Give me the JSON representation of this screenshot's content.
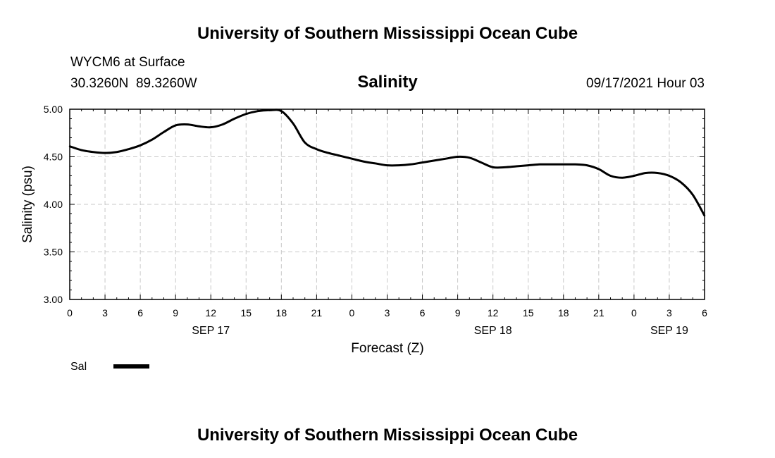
{
  "header": {
    "title": "University of Southern Mississippi Ocean Cube",
    "station": "WYCM6 at Surface",
    "coords": "30.3260N  89.3260W",
    "variable": "Salinity",
    "datetime": "09/17/2021 Hour 03"
  },
  "footer": {
    "title": "University of Southern Mississippi Ocean Cube"
  },
  "chart_data": {
    "type": "line",
    "title": "Salinity",
    "xlabel": "Forecast (Z)",
    "ylabel": "Salinity (psu)",
    "ylim": [
      3.0,
      5.0
    ],
    "xlim": [
      0,
      54
    ],
    "x_tick_values": [
      0,
      3,
      6,
      9,
      12,
      15,
      18,
      21,
      24,
      27,
      30,
      33,
      36,
      39,
      42,
      45,
      48,
      51,
      54
    ],
    "x_tick_labels": [
      "0",
      "3",
      "6",
      "9",
      "12",
      "15",
      "18",
      "21",
      "0",
      "3",
      "6",
      "9",
      "12",
      "15",
      "18",
      "21",
      "0",
      "3",
      "6"
    ],
    "y_tick_values": [
      3.0,
      3.5,
      4.0,
      4.5,
      5.0
    ],
    "y_tick_labels": [
      "3.00",
      "3.50",
      "4.00",
      "4.50",
      "5.00"
    ],
    "date_labels": [
      {
        "x": 12,
        "label": "SEP 17"
      },
      {
        "x": 36,
        "label": "SEP 18"
      },
      {
        "x": 51,
        "label": "SEP 19"
      }
    ],
    "grid": true,
    "legend": [
      {
        "name": "Sal",
        "color": "#000000"
      }
    ],
    "series": [
      {
        "name": "Sal",
        "color": "#000000",
        "x": [
          0,
          1,
          2,
          3,
          4,
          5,
          6,
          7,
          8,
          9,
          10,
          11,
          12,
          13,
          14,
          15,
          16,
          17,
          18,
          19,
          20,
          21,
          22,
          23,
          24,
          25,
          26,
          27,
          28,
          29,
          30,
          31,
          32,
          33,
          34,
          35,
          36,
          37,
          38,
          39,
          40,
          41,
          42,
          43,
          44,
          45,
          46,
          47,
          48,
          49,
          50,
          51,
          52,
          53,
          54
        ],
        "values": [
          4.61,
          4.57,
          4.55,
          4.54,
          4.55,
          4.58,
          4.62,
          4.68,
          4.76,
          4.83,
          4.84,
          4.82,
          4.81,
          4.84,
          4.9,
          4.95,
          4.98,
          4.99,
          4.98,
          4.85,
          4.65,
          4.58,
          4.54,
          4.51,
          4.48,
          4.45,
          4.43,
          4.41,
          4.41,
          4.42,
          4.44,
          4.46,
          4.48,
          4.5,
          4.49,
          4.44,
          4.39,
          4.39,
          4.4,
          4.41,
          4.42,
          4.42,
          4.42,
          4.42,
          4.41,
          4.37,
          4.3,
          4.28,
          4.3,
          4.33,
          4.33,
          4.3,
          4.23,
          4.1,
          3.88
        ]
      }
    ]
  }
}
